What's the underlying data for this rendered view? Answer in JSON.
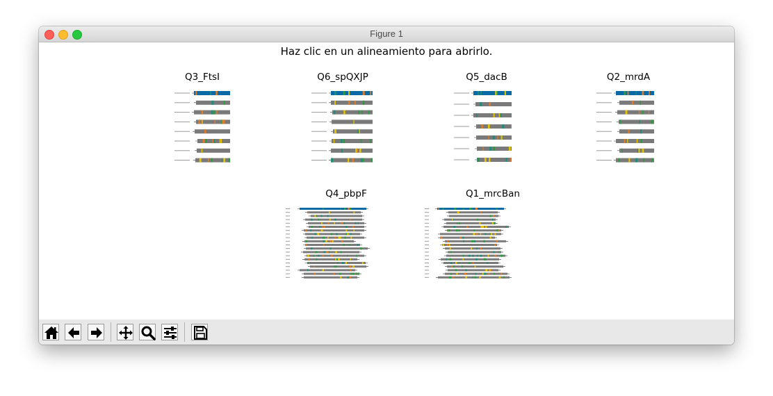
{
  "window": {
    "title": "Figure 1"
  },
  "figure": {
    "suptitle": "Haz clic en un alineamiento para abrirlo.",
    "panels": [
      {
        "title": "Q3_FtsI"
      },
      {
        "title": "Q6_spQXJP"
      },
      {
        "title": "Q5_dacB"
      },
      {
        "title": "Q2_mrdA"
      },
      {
        "title": "Q4_pbpF"
      },
      {
        "title": "Q1_mrcBan"
      }
    ]
  },
  "colors": {
    "query_bar": "#0a6aa5",
    "gap_bar": "#7a7a7a",
    "aa_orange": "#e07b28",
    "aa_green": "#2e9a3e",
    "aa_yellow": "#e6c300",
    "aa_teal": "#1f8c7a",
    "figure_bg": "#ffffff",
    "toolbar_bg": "#e8e8e8"
  },
  "toolbar": {
    "buttons": [
      {
        "icon": "home-icon"
      },
      {
        "icon": "arrow-left-icon"
      },
      {
        "icon": "arrow-right-icon"
      },
      {
        "icon": "move-icon"
      },
      {
        "icon": "zoom-icon"
      },
      {
        "icon": "sliders-icon"
      },
      {
        "icon": "save-icon"
      }
    ]
  }
}
